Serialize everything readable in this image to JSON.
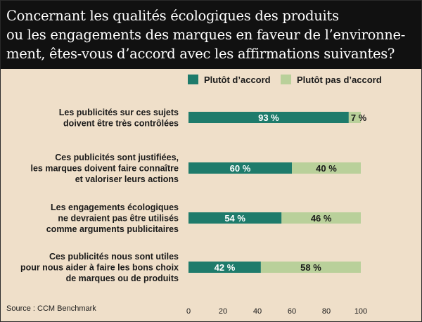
{
  "title_lines": [
    "Concernant les qualités écologiques des produits",
    "ou les engagements des marques en faveur de l’environne-",
    "ment, êtes-vous d’accord avec les affirmations suivantes?"
  ],
  "source": "Source : CCM Benchmark",
  "colors": {
    "agree": "#1e7b6b",
    "disagree": "#b9d09a",
    "background": "#efdfc9",
    "title_bg": "#111111"
  },
  "chart_data": {
    "type": "bar",
    "orientation": "horizontal",
    "stacked": true,
    "title": "Concernant les qualités écologiques des produits ou les engagements des marques en faveur de l’environnement, êtes-vous d’accord avec les affirmations suivantes?",
    "categories": [
      [
        "Les publicités sur ces sujets",
        "doivent être très contrôlées"
      ],
      [
        "Ces publicités sont justifiées,",
        "les marques doivent faire connaître",
        "et valoriser leurs actions"
      ],
      [
        "Les engagements écologiques",
        "ne devraient pas être utilisés",
        "comme arguments publicitaires"
      ],
      [
        "Ces publicités nous sont utiles",
        "pour nous aider à faire les bons choix",
        "de marques ou de produits"
      ]
    ],
    "series": [
      {
        "name": "Plutôt d’accord",
        "values": [
          93,
          60,
          54,
          42
        ],
        "labels": [
          "93 %",
          "60 %",
          "54 %",
          "42 %"
        ]
      },
      {
        "name": "Plutôt pas d’accord",
        "values": [
          7,
          40,
          46,
          58
        ],
        "labels": [
          "7 %",
          "40 %",
          "46 %",
          "58 %"
        ]
      }
    ],
    "xlim": [
      0,
      100
    ],
    "xticks": [
      "0",
      "20",
      "40",
      "60",
      "80",
      "100"
    ],
    "legend": "top",
    "grid": false
  }
}
